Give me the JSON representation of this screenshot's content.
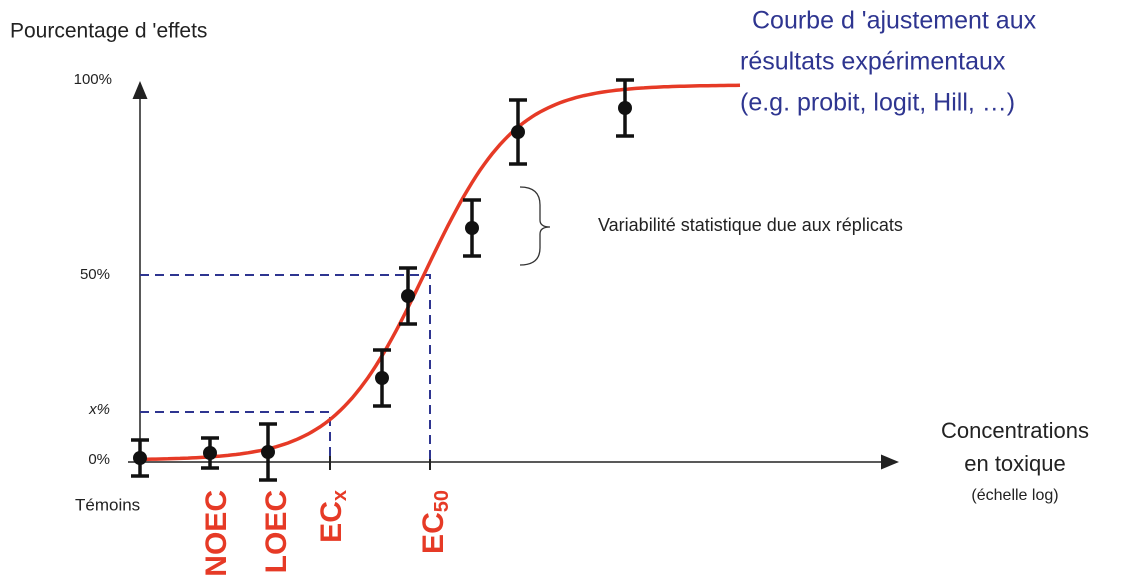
{
  "axes": {
    "y_title": "Pourcentage d 'effets",
    "y_labels": [
      "100%",
      "50%",
      "x%",
      "0%"
    ],
    "x_title": [
      "Concentrations",
      "en toxique"
    ],
    "x_note": "(échelle log)",
    "control": "Témoins"
  },
  "fit_note": [
    "Courbe d 'ajustement aux",
    "résultats expérimentaux",
    "(e.g. probit, logit, Hill, …)"
  ],
  "variability_note": "Variabilité statistique due aux réplicats",
  "thresholds": {
    "noec": "NOEC",
    "loec": "LOEC",
    "ecx": {
      "base": "EC",
      "sub": "x"
    },
    "ec50": {
      "base": "EC",
      "sub": "50"
    }
  }
}
